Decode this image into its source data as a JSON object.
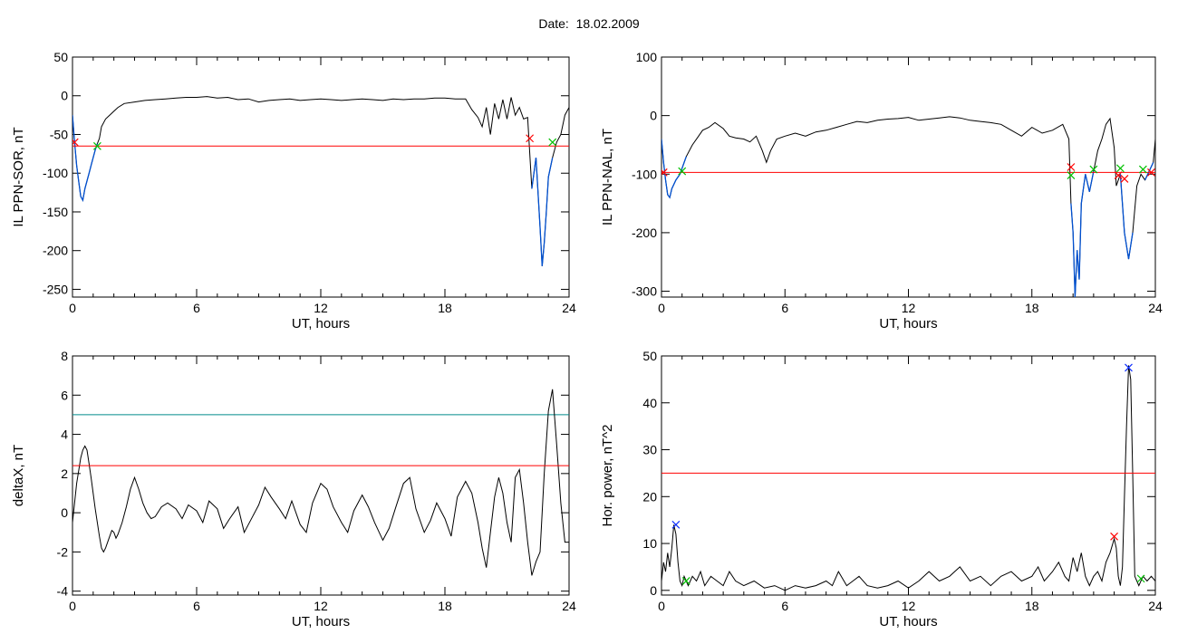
{
  "figure": {
    "title": "Date:  18.02.2009"
  },
  "colors": {
    "trace": "#000000",
    "threshold": "#ff0000",
    "highlight": "#0050d0",
    "upper": "#008b8b",
    "marker_red": "#ff0000",
    "marker_green": "#00c000",
    "marker_blue": "#1030ff"
  },
  "chart_data": [
    {
      "id": "sor",
      "type": "line",
      "xlabel": "UT, hours",
      "ylabel": "IL PPN-SOR, nT",
      "xlim": [
        0,
        24
      ],
      "ylim": [
        -260,
        50
      ],
      "xticks": [
        0,
        6,
        12,
        18,
        24
      ],
      "yticks": [
        50,
        0,
        -50,
        -100,
        -150,
        -200,
        -250
      ],
      "threshold": -65,
      "x": [
        0.0,
        0.1,
        0.2,
        0.3,
        0.4,
        0.5,
        0.6,
        0.7,
        0.8,
        0.9,
        1.0,
        1.1,
        1.2,
        1.3,
        1.4,
        1.6,
        1.8,
        2.0,
        2.2,
        2.5,
        3.0,
        3.5,
        4.0,
        4.5,
        5.0,
        5.5,
        6.0,
        6.5,
        7.0,
        7.5,
        8.0,
        8.5,
        9.0,
        9.5,
        10.0,
        10.5,
        11.0,
        11.5,
        12.0,
        12.5,
        13.0,
        13.5,
        14.0,
        14.5,
        15.0,
        15.5,
        16.0,
        16.5,
        17.0,
        17.5,
        18.0,
        18.5,
        19.0,
        19.3,
        19.6,
        19.8,
        20.0,
        20.2,
        20.4,
        20.6,
        20.8,
        21.0,
        21.2,
        21.4,
        21.6,
        21.8,
        22.0,
        22.2,
        22.4,
        22.6,
        22.7,
        22.8,
        22.9,
        23.0,
        23.2,
        23.4,
        23.6,
        23.8,
        24.0
      ],
      "y": [
        -25,
        -60,
        -90,
        -110,
        -130,
        -135,
        -120,
        -110,
        -100,
        -90,
        -80,
        -70,
        -62,
        -55,
        -40,
        -30,
        -25,
        -20,
        -15,
        -10,
        -8,
        -6,
        -5,
        -4,
        -3,
        -2,
        -2,
        -1,
        -3,
        -2,
        -5,
        -4,
        -8,
        -6,
        -5,
        -4,
        -6,
        -5,
        -4,
        -5,
        -6,
        -5,
        -4,
        -5,
        -6,
        -4,
        -5,
        -4,
        -4,
        -3,
        -3,
        -4,
        -4,
        -18,
        -28,
        -40,
        -15,
        -50,
        -10,
        -30,
        -5,
        -30,
        -2,
        -25,
        -15,
        -30,
        -28,
        -120,
        -80,
        -170,
        -220,
        -190,
        -150,
        -105,
        -80,
        -60,
        -50,
        -25,
        -15
      ],
      "threshold_segments": [
        [
          0.0,
          1.2
        ],
        [
          22.1,
          23.3
        ]
      ],
      "markers": [
        {
          "x": 0.1,
          "y": -60,
          "color": "#ff0000"
        },
        {
          "x": 1.2,
          "y": -65,
          "color": "#00c000"
        },
        {
          "x": 22.1,
          "y": -55,
          "color": "#ff0000"
        },
        {
          "x": 23.2,
          "y": -60,
          "color": "#00c000"
        }
      ]
    },
    {
      "id": "nal",
      "type": "line",
      "xlabel": "UT, hours",
      "ylabel": "IL PPN-NAL, nT",
      "xlim": [
        0,
        24
      ],
      "ylim": [
        -310,
        100
      ],
      "xticks": [
        0,
        6,
        12,
        18,
        24
      ],
      "yticks": [
        100,
        0,
        -100,
        -200,
        -300
      ],
      "threshold": -97,
      "x": [
        0.0,
        0.1,
        0.2,
        0.3,
        0.4,
        0.5,
        0.7,
        0.9,
        1.0,
        1.2,
        1.5,
        1.8,
        2.0,
        2.3,
        2.6,
        3.0,
        3.3,
        3.6,
        4.0,
        4.3,
        4.6,
        4.9,
        5.1,
        5.3,
        5.6,
        6.0,
        6.5,
        7.0,
        7.5,
        8.0,
        8.5,
        9.0,
        9.5,
        10.0,
        10.5,
        11.0,
        11.5,
        12.0,
        12.5,
        13.0,
        13.5,
        14.0,
        14.5,
        15.0,
        15.5,
        16.0,
        16.5,
        17.0,
        17.5,
        18.0,
        18.5,
        19.0,
        19.5,
        19.8,
        19.9,
        20.0,
        20.1,
        20.2,
        20.3,
        20.4,
        20.6,
        20.8,
        21.0,
        21.2,
        21.4,
        21.6,
        21.8,
        22.0,
        22.1,
        22.3,
        22.5,
        22.7,
        22.9,
        23.1,
        23.3,
        23.5,
        23.7,
        23.9,
        24.0
      ],
      "y": [
        -40,
        -80,
        -110,
        -135,
        -140,
        -125,
        -110,
        -100,
        -90,
        -70,
        -50,
        -35,
        -25,
        -20,
        -12,
        -22,
        -35,
        -38,
        -40,
        -45,
        -35,
        -60,
        -80,
        -60,
        -40,
        -35,
        -30,
        -35,
        -28,
        -25,
        -20,
        -15,
        -10,
        -12,
        -8,
        -6,
        -5,
        -3,
        -8,
        -6,
        -4,
        -2,
        -4,
        -8,
        -10,
        -12,
        -15,
        -25,
        -35,
        -20,
        -30,
        -25,
        -15,
        -40,
        -150,
        -200,
        -310,
        -230,
        -280,
        -150,
        -100,
        -130,
        -95,
        -60,
        -40,
        -15,
        -5,
        -55,
        -120,
        -100,
        -200,
        -245,
        -200,
        -120,
        -100,
        -110,
        -95,
        -80,
        -40
      ],
      "threshold_segments": [
        [
          0.0,
          1.2
        ],
        [
          19.9,
          21.0
        ],
        [
          22.2,
          22.9
        ],
        [
          23.4,
          23.9
        ]
      ],
      "markers": [
        {
          "x": 0.1,
          "y": -97,
          "color": "#ff0000"
        },
        {
          "x": 1.0,
          "y": -95,
          "color": "#00c000"
        },
        {
          "x": 19.9,
          "y": -88,
          "color": "#ff0000"
        },
        {
          "x": 19.9,
          "y": -102,
          "color": "#00c000"
        },
        {
          "x": 21.0,
          "y": -92,
          "color": "#00c000"
        },
        {
          "x": 22.2,
          "y": -102,
          "color": "#ff0000"
        },
        {
          "x": 22.3,
          "y": -90,
          "color": "#00c000"
        },
        {
          "x": 22.5,
          "y": -108,
          "color": "#ff0000"
        },
        {
          "x": 23.4,
          "y": -92,
          "color": "#00c000"
        },
        {
          "x": 23.8,
          "y": -97,
          "color": "#ff0000"
        }
      ]
    },
    {
      "id": "deltax",
      "type": "line",
      "xlabel": "UT, hours",
      "ylabel": "deltaX, nT",
      "xlim": [
        0,
        24
      ],
      "ylim": [
        -4.2,
        8
      ],
      "xticks": [
        0,
        6,
        12,
        18,
        24
      ],
      "yticks": [
        8,
        6,
        4,
        2,
        0,
        -2,
        -4
      ],
      "threshold": 2.4,
      "upper_threshold": 5.0,
      "x": [
        0.0,
        0.2,
        0.4,
        0.5,
        0.6,
        0.7,
        0.8,
        0.9,
        1.0,
        1.1,
        1.2,
        1.3,
        1.4,
        1.5,
        1.6,
        1.7,
        1.8,
        1.9,
        2.0,
        2.1,
        2.2,
        2.4,
        2.6,
        2.8,
        3.0,
        3.2,
        3.4,
        3.6,
        3.8,
        4.0,
        4.3,
        4.6,
        5.0,
        5.3,
        5.6,
        6.0,
        6.3,
        6.6,
        7.0,
        7.3,
        7.6,
        8.0,
        8.3,
        8.6,
        9.0,
        9.3,
        9.6,
        10.0,
        10.3,
        10.6,
        11.0,
        11.3,
        11.6,
        12.0,
        12.3,
        12.6,
        13.0,
        13.3,
        13.6,
        14.0,
        14.3,
        14.6,
        15.0,
        15.3,
        15.6,
        16.0,
        16.3,
        16.6,
        17.0,
        17.3,
        17.6,
        18.0,
        18.3,
        18.6,
        19.0,
        19.3,
        19.6,
        19.8,
        20.0,
        20.2,
        20.4,
        20.6,
        20.8,
        21.0,
        21.2,
        21.4,
        21.6,
        21.8,
        22.0,
        22.2,
        22.4,
        22.6,
        22.8,
        23.0,
        23.2,
        23.4,
        23.6,
        23.8,
        24.0
      ],
      "y": [
        -0.5,
        1.5,
        2.8,
        3.2,
        3.4,
        3.2,
        2.5,
        1.8,
        1.0,
        0.2,
        -0.5,
        -1.2,
        -1.8,
        -2.0,
        -1.8,
        -1.5,
        -1.2,
        -0.9,
        -1.0,
        -1.3,
        -1.1,
        -0.5,
        0.3,
        1.2,
        1.8,
        1.2,
        0.5,
        0.0,
        -0.3,
        -0.2,
        0.3,
        0.5,
        0.2,
        -0.3,
        0.4,
        0.1,
        -0.5,
        0.6,
        0.2,
        -0.8,
        -0.3,
        0.3,
        -1.0,
        -0.4,
        0.4,
        1.3,
        0.8,
        0.2,
        -0.3,
        0.6,
        -0.6,
        -1.0,
        0.5,
        1.5,
        1.2,
        0.3,
        -0.5,
        -1.0,
        0.1,
        0.9,
        0.3,
        -0.5,
        -1.4,
        -0.8,
        0.2,
        1.5,
        1.8,
        0.2,
        -1.0,
        -0.4,
        0.5,
        -0.3,
        -1.2,
        0.8,
        1.6,
        1.0,
        -0.5,
        -1.8,
        -2.8,
        -1.0,
        0.8,
        1.8,
        1.0,
        -0.5,
        -1.5,
        1.8,
        2.2,
        0.5,
        -1.5,
        -3.2,
        -2.5,
        -2.0,
        2.0,
        5.2,
        6.3,
        3.5,
        0.5,
        -1.5,
        -1.5
      ],
      "markers": []
    },
    {
      "id": "power",
      "type": "line",
      "xlabel": "UT, hours",
      "ylabel": "Hor. power, nT^2",
      "xlim": [
        0,
        24
      ],
      "ylim": [
        -1,
        50
      ],
      "xticks": [
        0,
        6,
        12,
        18,
        24
      ],
      "yticks": [
        50,
        40,
        30,
        20,
        10,
        0
      ],
      "threshold": 25,
      "x": [
        0.0,
        0.1,
        0.2,
        0.3,
        0.4,
        0.5,
        0.6,
        0.7,
        0.8,
        0.9,
        1.0,
        1.1,
        1.2,
        1.3,
        1.5,
        1.7,
        1.9,
        2.1,
        2.4,
        2.7,
        3.0,
        3.3,
        3.6,
        4.0,
        4.5,
        5.0,
        5.5,
        6.0,
        6.5,
        7.0,
        7.5,
        8.0,
        8.3,
        8.6,
        9.0,
        9.3,
        9.6,
        10.0,
        10.5,
        11.0,
        11.5,
        12.0,
        12.5,
        13.0,
        13.5,
        14.0,
        14.5,
        15.0,
        15.5,
        16.0,
        16.5,
        17.0,
        17.5,
        18.0,
        18.3,
        18.6,
        19.0,
        19.3,
        19.6,
        19.8,
        20.0,
        20.2,
        20.4,
        20.6,
        20.8,
        21.0,
        21.2,
        21.4,
        21.6,
        21.8,
        22.0,
        22.1,
        22.2,
        22.3,
        22.4,
        22.5,
        22.6,
        22.7,
        22.8,
        22.9,
        23.0,
        23.1,
        23.2,
        23.4,
        23.6,
        23.8,
        24.0
      ],
      "y": [
        2,
        6,
        4,
        8,
        5,
        9,
        14,
        12,
        6,
        2,
        1,
        3,
        2,
        1,
        3,
        2,
        4,
        1,
        3,
        2,
        1,
        4,
        2,
        1,
        2,
        0.5,
        1,
        0,
        1,
        0.5,
        1,
        2,
        1,
        4,
        1,
        2,
        3,
        1,
        0.5,
        1,
        2,
        0.5,
        2,
        4,
        2,
        3,
        5,
        2,
        3,
        1,
        3,
        4,
        2,
        3,
        5,
        2,
        4,
        6,
        3,
        2,
        7,
        4,
        8,
        3,
        1,
        3,
        4,
        2,
        6,
        8,
        11,
        9,
        3,
        1,
        5,
        20,
        35,
        48,
        45,
        25,
        3,
        2,
        1,
        3,
        2,
        3,
        2
      ],
      "markers": [
        {
          "x": 0.7,
          "y": 14,
          "color": "#1030ff"
        },
        {
          "x": 1.2,
          "y": 2,
          "color": "#00c000"
        },
        {
          "x": 22.0,
          "y": 11.5,
          "color": "#ff0000"
        },
        {
          "x": 22.7,
          "y": 47.5,
          "color": "#1030ff"
        },
        {
          "x": 23.3,
          "y": 2.5,
          "color": "#00c000"
        }
      ]
    }
  ]
}
